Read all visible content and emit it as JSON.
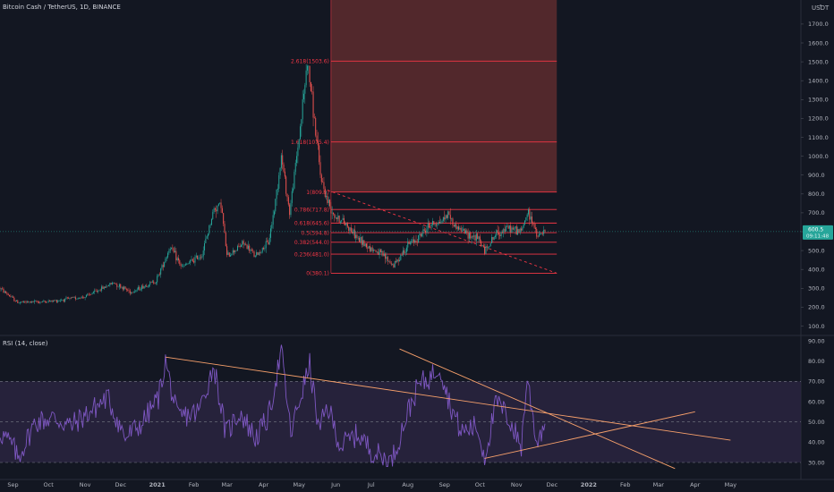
{
  "header": {
    "symbol_title": "Bitcoin Cash / TetherUS, 1D, BINANCE",
    "currency": "USDT"
  },
  "rsi_header": {
    "label": "RSI (14, close)"
  },
  "price_tag": {
    "value": "600.5",
    "countdown": "09:11:48",
    "color": "#26a69a"
  },
  "colors": {
    "background": "#131722",
    "up": "#26a69a",
    "down": "#ef5350",
    "fib_line": "#f23645",
    "fib_zone": "#5a2a2e",
    "rsi_line": "#7e57c2",
    "rsi_band": "#2a2540",
    "trendline": "#f7a06b"
  },
  "chart_data": [
    {
      "type": "candlestick",
      "title": "Bitcoin Cash / TetherUS, 1D, BINANCE",
      "ylabel": "USDT",
      "y_ticks": [
        "1700.0",
        "1600.0",
        "1500.0",
        "1400.0",
        "1300.0",
        "1200.0",
        "1100.0",
        "1000.0",
        "900.0",
        "800.0",
        "700.0",
        "600.0",
        "500.0",
        "400.0",
        "300.0",
        "200.0",
        "100.0"
      ],
      "x_ticks": [
        "Sep",
        "Oct",
        "Nov",
        "Dec",
        "2021",
        "Feb",
        "Mar",
        "Apr",
        "May",
        "Jun",
        "Jul",
        "Aug",
        "Sep",
        "Oct",
        "Nov",
        "Dec",
        "2022",
        "Feb",
        "Mar",
        "Apr",
        "May"
      ],
      "x_tick_dates": [
        "2020-09-01",
        "2020-10-01",
        "2020-11-01",
        "2020-12-01",
        "2021-01-01",
        "2021-02-01",
        "2021-03-01",
        "2021-04-01",
        "2021-05-01",
        "2021-06-01",
        "2021-07-01",
        "2021-08-01",
        "2021-09-01",
        "2021-10-01",
        "2021-11-01",
        "2021-12-01",
        "2022-01-01",
        "2022-02-01",
        "2022-03-01",
        "2022-04-01",
        "2022-05-01"
      ],
      "ylim": [
        0,
        1750
      ],
      "price_keypoints": [
        [
          "2020-08-21",
          300
        ],
        [
          "2020-09-05",
          225
        ],
        [
          "2020-10-01",
          230
        ],
        [
          "2020-11-01",
          255
        ],
        [
          "2020-11-25",
          330
        ],
        [
          "2020-12-10",
          280
        ],
        [
          "2020-12-31",
          340
        ],
        [
          "2021-01-12",
          520
        ],
        [
          "2021-01-22",
          410
        ],
        [
          "2021-02-08",
          480
        ],
        [
          "2021-02-18",
          720
        ],
        [
          "2021-02-24",
          750
        ],
        [
          "2021-03-01",
          470
        ],
        [
          "2021-03-15",
          540
        ],
        [
          "2021-03-25",
          470
        ],
        [
          "2021-04-05",
          540
        ],
        [
          "2021-04-10",
          720
        ],
        [
          "2021-04-16",
          1000
        ],
        [
          "2021-04-23",
          700
        ],
        [
          "2021-05-01",
          1100
        ],
        [
          "2021-05-08",
          1500
        ],
        [
          "2021-05-12",
          1300
        ],
        [
          "2021-05-19",
          900
        ],
        [
          "2021-05-25",
          760
        ],
        [
          "2021-06-01",
          680
        ],
        [
          "2021-06-10",
          640
        ],
        [
          "2021-06-20",
          560
        ],
        [
          "2021-07-01",
          510
        ],
        [
          "2021-07-10",
          480
        ],
        [
          "2021-07-20",
          420
        ],
        [
          "2021-08-01",
          530
        ],
        [
          "2021-08-10",
          570
        ],
        [
          "2021-08-20",
          640
        ],
        [
          "2021-08-28",
          650
        ],
        [
          "2021-09-05",
          700
        ],
        [
          "2021-09-08",
          640
        ],
        [
          "2021-09-20",
          590
        ],
        [
          "2021-09-30",
          560
        ],
        [
          "2021-10-05",
          500
        ],
        [
          "2021-10-15",
          590
        ],
        [
          "2021-10-25",
          620
        ],
        [
          "2021-11-05",
          600
        ],
        [
          "2021-11-10",
          700
        ],
        [
          "2021-11-15",
          650
        ],
        [
          "2021-11-18",
          570
        ],
        [
          "2021-11-25",
          600
        ]
      ],
      "current_price": 600.5,
      "fibonacci": {
        "levels": [
          {
            "ratio": "0",
            "price": 380.1,
            "label": "0(380.1)"
          },
          {
            "ratio": "0.236",
            "price": 481.0,
            "label": "0.236(481.0)"
          },
          {
            "ratio": "0.382",
            "price": 544.0,
            "label": "0.382(544.0)"
          },
          {
            "ratio": "0.5",
            "price": 594.8,
            "label": "0.5(594.8)"
          },
          {
            "ratio": "0.618",
            "price": 645.6,
            "label": "0.618(645.6)"
          },
          {
            "ratio": "0.786",
            "price": 717.8,
            "label": "0.786(717.8)"
          },
          {
            "ratio": "1",
            "price": 809.9,
            "label": "1(809.9)"
          },
          {
            "ratio": "1.618",
            "price": 1075.4,
            "label": "1.618(1075.4)"
          },
          {
            "ratio": "2.618",
            "price": 1503.6,
            "label": "2.618(1503.6)"
          }
        ],
        "start_date": "2021-05-28",
        "end_date": "2021-12-05"
      },
      "zone": {
        "start_date": "2021-05-28",
        "end_date": "2021-12-05",
        "top_price": 1750,
        "bottom_price": 809.9
      },
      "dashed_trendline": {
        "from": [
          "2021-05-25",
          820
        ],
        "to": [
          "2021-12-05",
          380
        ]
      }
    },
    {
      "type": "line",
      "title": "RSI (14, close)",
      "y_ticks": [
        "90.00",
        "80.00",
        "70.00",
        "60.00",
        "50.00",
        "40.00",
        "30.00"
      ],
      "ylim": [
        26,
        91
      ],
      "bands": {
        "upper": 70,
        "middle": 50,
        "lower": 30
      },
      "rsi_keypoints": [
        [
          "2020-08-21",
          45
        ],
        [
          "2020-09-01",
          38
        ],
        [
          "2020-09-05",
          32
        ],
        [
          "2020-09-20",
          50
        ],
        [
          "2020-10-05",
          52
        ],
        [
          "2020-10-20",
          48
        ],
        [
          "2020-11-05",
          55
        ],
        [
          "2020-11-20",
          62
        ],
        [
          "2020-12-05",
          42
        ],
        [
          "2020-12-20",
          50
        ],
        [
          "2021-01-02",
          62
        ],
        [
          "2021-01-08",
          80
        ],
        [
          "2021-01-18",
          52
        ],
        [
          "2021-02-05",
          55
        ],
        [
          "2021-02-18",
          78
        ],
        [
          "2021-02-28",
          44
        ],
        [
          "2021-03-12",
          55
        ],
        [
          "2021-03-25",
          42
        ],
        [
          "2021-04-05",
          52
        ],
        [
          "2021-04-16",
          85
        ],
        [
          "2021-04-24",
          44
        ],
        [
          "2021-05-02",
          62
        ],
        [
          "2021-05-10",
          78
        ],
        [
          "2021-05-18",
          45
        ],
        [
          "2021-05-25",
          58
        ],
        [
          "2021-06-05",
          38
        ],
        [
          "2021-06-20",
          44
        ],
        [
          "2021-07-01",
          36
        ],
        [
          "2021-07-18",
          30
        ],
        [
          "2021-08-01",
          55
        ],
        [
          "2021-08-10",
          68
        ],
        [
          "2021-08-20",
          72
        ],
        [
          "2021-08-28",
          78
        ],
        [
          "2021-09-05",
          60
        ],
        [
          "2021-09-15",
          45
        ],
        [
          "2021-09-28",
          48
        ],
        [
          "2021-10-05",
          33
        ],
        [
          "2021-10-15",
          60
        ],
        [
          "2021-10-25",
          52
        ],
        [
          "2021-11-05",
          38
        ],
        [
          "2021-11-10",
          72
        ],
        [
          "2021-11-18",
          40
        ],
        [
          "2021-11-25",
          50
        ]
      ],
      "trendlines": [
        {
          "from": [
            "2021-01-08",
            82
          ],
          "to": [
            "2022-05-01",
            41
          ]
        },
        {
          "from": [
            "2021-07-25",
            86
          ],
          "to": [
            "2022-03-15",
            27
          ]
        },
        {
          "from": [
            "2021-10-05",
            32
          ],
          "to": [
            "2022-04-01",
            55
          ]
        }
      ]
    }
  ]
}
